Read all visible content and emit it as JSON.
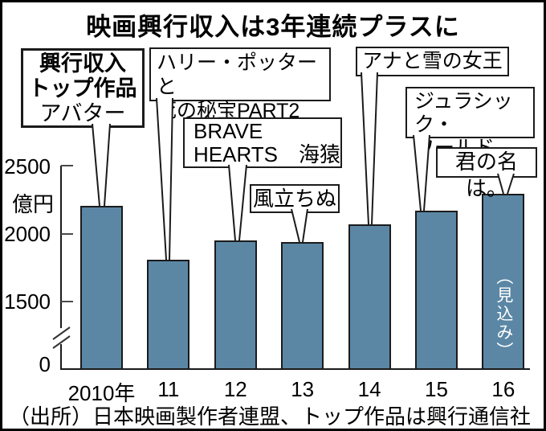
{
  "title": "映画興行収入は3年連続プラスに",
  "chart_data": {
    "type": "bar",
    "title": "映画興行収入は3年連続プラスに",
    "unit_label": "億円",
    "categories": [
      "2010年",
      "11",
      "12",
      "13",
      "14",
      "15",
      "16"
    ],
    "values": [
      2207,
      1812,
      1952,
      1942,
      2070,
      2171,
      2300
    ],
    "y_ticks": [
      2500,
      2000,
      1500,
      0
    ],
    "ylim": [
      0,
      2500
    ],
    "axis_break_between": [
      0,
      1500
    ],
    "last_bar_note": "（見込み）",
    "bar_color": "#5b87a5",
    "legend": "none",
    "grid": "off"
  },
  "callouts": [
    {
      "heading": "興行収入トップ作品",
      "lines": [
        "興行収入",
        "トップ作品",
        "アバター"
      ]
    },
    {
      "lines": [
        "ハリー・ポッターと",
        "死の秘宝PART2"
      ]
    },
    {
      "lines": [
        "BRAVE",
        "HEARTS　海猿"
      ]
    },
    {
      "lines": [
        "風立ちぬ"
      ]
    },
    {
      "lines": [
        "アナと雪の女王"
      ]
    },
    {
      "lines": [
        "ジュラシック・",
        "ワールド"
      ]
    },
    {
      "lines": [
        "君の名は。"
      ]
    }
  ],
  "source": "（出所）日本映画製作者連盟、トップ作品は興行通信社"
}
